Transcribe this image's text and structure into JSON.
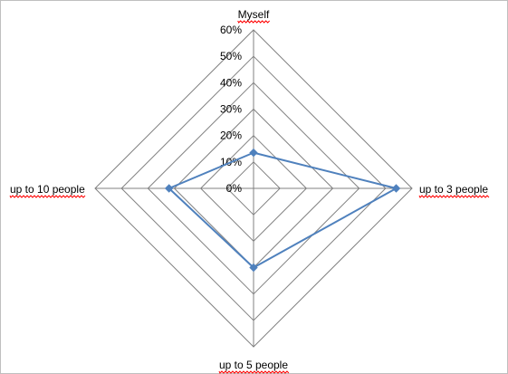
{
  "chart_data": {
    "type": "radar",
    "categories": [
      "Myself",
      "up to 3 people",
      "up to 5 people",
      "up to 10 people"
    ],
    "series": [
      {
        "values": [
          13.5,
          54,
          30,
          32
        ],
        "color": "#4f81bd"
      }
    ],
    "rlim": [
      0,
      60
    ],
    "ticks": [
      "0%",
      "10%",
      "20%",
      "30%",
      "40%",
      "50%",
      "60%"
    ],
    "tick_values": [
      0,
      10,
      20,
      30,
      40,
      50,
      60
    ],
    "grid": true,
    "grid_color": "#808080",
    "spellcheck_underline_color": "#ff0000"
  }
}
